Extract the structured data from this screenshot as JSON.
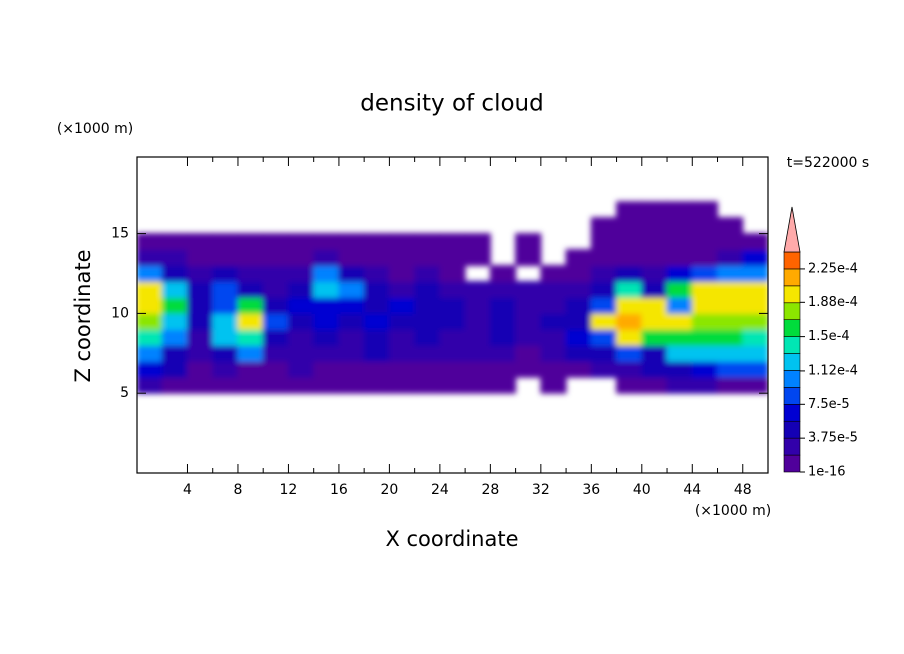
{
  "chart_data": {
    "type": "contour",
    "title": "density of cloud",
    "x_label": "X coordinate",
    "y_label": "Z coordinate",
    "x_unit": "(×1000 m)",
    "y_unit": "(×1000 m)",
    "annotation": "t=522000 s",
    "xlim": [
      0,
      50
    ],
    "ylim": [
      0,
      19.8
    ],
    "xticks": [
      4,
      8,
      12,
      16,
      20,
      24,
      28,
      32,
      36,
      40,
      44,
      48
    ],
    "yticks": [
      5,
      10,
      15
    ],
    "x": [
      1,
      3,
      5,
      7,
      9,
      11,
      13,
      15,
      17,
      19,
      21,
      23,
      25,
      27,
      29,
      31,
      33,
      35,
      37,
      39,
      41,
      43,
      45,
      47,
      49
    ],
    "y": [
      5.5,
      6.5,
      7.5,
      8.5,
      9.5,
      10.5,
      11.5,
      12.5,
      13.5,
      14.5,
      15.5,
      16.5
    ],
    "values": [
      [
        2e-05,
        5e-06,
        5e-06,
        5e-06,
        5e-06,
        5e-06,
        5e-06,
        5e-06,
        5e-06,
        5e-06,
        5e-06,
        5e-06,
        5e-06,
        5e-06,
        5e-06,
        null,
        5e-06,
        null,
        null,
        5e-06,
        5e-06,
        2e-05,
        3e-05,
        5e-06,
        5e-06
      ],
      [
        6e-05,
        4e-05,
        1e-05,
        2e-05,
        1e-05,
        1e-05,
        2e-05,
        1e-05,
        1e-05,
        1e-05,
        1e-05,
        1e-05,
        5e-06,
        5e-06,
        1e-05,
        5e-06,
        5e-06,
        1e-05,
        2e-05,
        3e-05,
        5e-05,
        4e-05,
        7e-05,
        8e-05,
        9e-05
      ],
      [
        0.00011,
        5e-05,
        2e-05,
        4e-05,
        0.0001,
        3e-05,
        2e-05,
        3e-05,
        2e-05,
        4e-05,
        2e-05,
        3e-05,
        2e-05,
        2e-05,
        3e-05,
        1e-05,
        2e-05,
        4e-05,
        5e-05,
        9e-05,
        5e-05,
        0.00012,
        0.00013,
        0.00013,
        0.00013
      ],
      [
        0.000145,
        0.0001,
        3e-05,
        0.00013,
        0.000135,
        4e-05,
        3e-05,
        4e-05,
        3e-05,
        5e-05,
        3e-05,
        4e-05,
        3e-05,
        2e-05,
        4e-05,
        2e-05,
        3e-05,
        6e-05,
        8e-05,
        0.0002,
        0.00016,
        0.00016,
        0.000165,
        0.00016,
        0.000145
      ],
      [
        0.00017,
        0.00013,
        4e-05,
        0.00013,
        0.00019,
        9e-05,
        4e-05,
        6e-05,
        5e-05,
        6e-05,
        4e-05,
        5e-05,
        4e-05,
        3e-05,
        5e-05,
        3e-05,
        4e-05,
        5e-05,
        0.00019,
        0.00022,
        0.000195,
        0.00019,
        0.000185,
        0.000175,
        0.00017
      ],
      [
        0.0002,
        0.00016,
        5e-05,
        9e-05,
        0.00015,
        5e-05,
        6e-05,
        7e-05,
        6e-05,
        5e-05,
        6e-05,
        4e-05,
        5e-05,
        3e-05,
        4e-05,
        3e-05,
        3e-05,
        4e-05,
        9e-05,
        0.0002,
        0.0002,
        0.0001,
        0.000195,
        0.0002,
        0.0002
      ],
      [
        0.00019,
        0.00013,
        4e-05,
        9e-05,
        4e-05,
        2e-05,
        5e-05,
        0.00012,
        0.0001,
        4e-05,
        3e-05,
        4e-05,
        2e-05,
        2e-05,
        3e-05,
        2e-05,
        2e-05,
        3e-05,
        4e-05,
        0.00014,
        5e-05,
        0.00016,
        0.00019,
        0.00019,
        0.00019
      ],
      [
        0.0001,
        4e-05,
        3e-05,
        4e-05,
        2e-05,
        2e-05,
        3e-05,
        0.0001,
        4e-05,
        2e-05,
        1e-05,
        2e-05,
        1e-05,
        null,
        1e-05,
        null,
        1e-05,
        1e-05,
        2e-05,
        4e-05,
        2e-05,
        6e-05,
        8e-05,
        0.0001,
        0.00011
      ],
      [
        3e-05,
        2e-05,
        1e-05,
        1e-05,
        1e-05,
        1e-05,
        1e-05,
        2e-05,
        1e-05,
        1e-05,
        5e-06,
        1e-05,
        5e-06,
        5e-06,
        null,
        5e-06,
        null,
        5e-06,
        5e-06,
        1e-05,
        5e-06,
        1e-05,
        1e-05,
        3e-05,
        6e-05
      ],
      [
        5e-06,
        5e-06,
        5e-06,
        5e-06,
        5e-06,
        5e-06,
        5e-06,
        5e-06,
        5e-06,
        5e-06,
        5e-06,
        5e-06,
        5e-06,
        5e-06,
        null,
        5e-06,
        null,
        null,
        5e-06,
        5e-06,
        5e-06,
        5e-06,
        5e-06,
        5e-06,
        1e-05
      ],
      [
        null,
        null,
        null,
        null,
        null,
        null,
        null,
        null,
        null,
        null,
        null,
        null,
        null,
        null,
        null,
        null,
        null,
        null,
        2e-06,
        2e-06,
        2e-06,
        2e-06,
        2e-06,
        2e-06,
        null
      ],
      [
        null,
        null,
        null,
        null,
        null,
        null,
        null,
        null,
        null,
        null,
        null,
        null,
        null,
        null,
        null,
        null,
        null,
        null,
        null,
        1e-06,
        1e-06,
        1e-06,
        1e-06,
        null,
        null
      ]
    ],
    "levels": [
      1e-16,
      1.875e-05,
      3.75e-05,
      5.625e-05,
      7.5e-05,
      9.375e-05,
      0.0001125,
      0.00013125,
      0.00015,
      0.00016875,
      0.0001875,
      0.00020625,
      0.000225,
      0.00024375
    ],
    "colors": [
      "#50009b",
      "#3200aa",
      "#1400b4",
      "#0000d2",
      "#0046f0",
      "#0082ff",
      "#00c3f0",
      "#00e6b4",
      "#00dc3c",
      "#8ce600",
      "#f5e600",
      "#ffaa00",
      "#ff6400"
    ],
    "over_color": "#ffaaaa",
    "clim": [
      1e-16,
      0.00024375
    ],
    "cticks": [
      {
        "value": 1e-16,
        "label": "1e-16"
      },
      {
        "value": 3.75e-05,
        "label": "3.75e-5"
      },
      {
        "value": 7.5e-05,
        "label": "7.5e-5"
      },
      {
        "value": 0.000112,
        "label": "1.12e-4"
      },
      {
        "value": 0.00015,
        "label": "1.5e-4"
      },
      {
        "value": 0.000188,
        "label": "1.88e-4"
      },
      {
        "value": 0.000225,
        "label": "2.25e-4"
      }
    ]
  }
}
